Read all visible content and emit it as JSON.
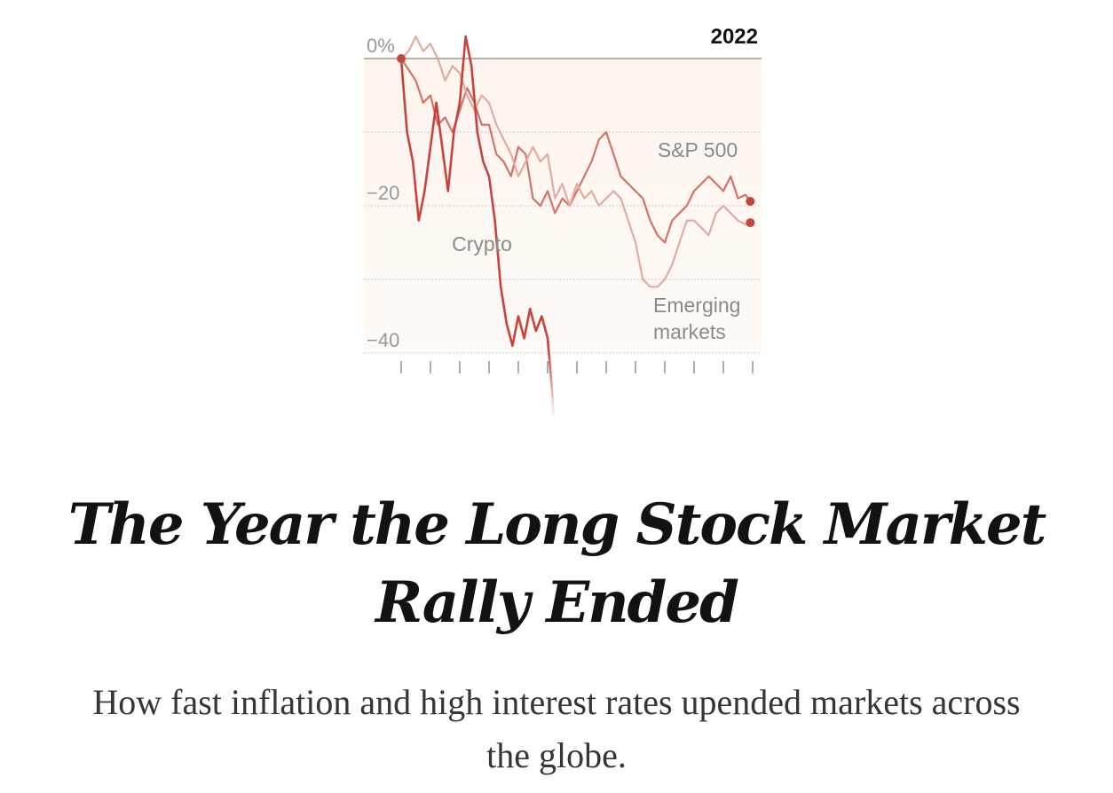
{
  "headline": "The Year the Long Stock Market Rally Ended",
  "dek": "How fast inflation and high interest rates upended markets across the globe.",
  "chart_data": {
    "type": "line",
    "title": "2022",
    "ylim": [
      -40,
      0
    ],
    "yticks": [
      {
        "value": 0,
        "label": "0%"
      },
      {
        "value": -10,
        "label": ""
      },
      {
        "value": -20,
        "label": "−20"
      },
      {
        "value": -30,
        "label": ""
      },
      {
        "value": -40,
        "label": "−40"
      }
    ],
    "grid": true,
    "x_domain": [
      0,
      12
    ],
    "xticks": [
      0,
      1,
      2,
      3,
      4,
      5,
      6,
      7,
      8,
      9,
      10,
      11,
      12
    ],
    "colors": {
      "crypto": "#c8433d",
      "sp500": "#d47368",
      "emerging": "#e5aaa2",
      "grid": "#b7b7b7",
      "zero_line": "#999999",
      "band": "#fdf5ee",
      "tick_label": "#999999",
      "series_label": "#8a8a8a",
      "end_dot": "#c8433d"
    },
    "series": [
      {
        "name": "S&P 500",
        "label_lines": [
          "S&P 500"
        ],
        "x": [
          0,
          0.25,
          0.5,
          0.75,
          1.0,
          1.25,
          1.5,
          1.75,
          2.0,
          2.25,
          2.5,
          2.75,
          3.0,
          3.25,
          3.5,
          3.75,
          4.0,
          4.25,
          4.5,
          4.75,
          5.0,
          5.25,
          5.5,
          5.75,
          6.0,
          6.25,
          6.5,
          6.75,
          7.0,
          7.25,
          7.5,
          7.75,
          8.0,
          8.25,
          8.5,
          8.75,
          9.0,
          9.25,
          9.5,
          9.75,
          10.0,
          10.25,
          10.5,
          10.75,
          11.0,
          11.25,
          11.5,
          11.75,
          11.95
        ],
        "values": [
          0,
          -1.5,
          -3,
          -6,
          -5,
          -9,
          -8,
          -10,
          -7,
          -4,
          -6,
          -9,
          -9,
          -13,
          -14,
          -16,
          -12,
          -13,
          -19,
          -20,
          -18,
          -21,
          -19,
          -20,
          -18,
          -16,
          -14,
          -11,
          -10,
          -13,
          -16,
          -17,
          -18,
          -19,
          -22,
          -24,
          -25,
          -22,
          -21,
          -20,
          -18,
          -17,
          -16,
          -17,
          -18,
          -16,
          -19,
          -18.5,
          -19.4
        ]
      },
      {
        "name": "Emerging markets",
        "label_lines": [
          "Emerging",
          "markets"
        ],
        "x": [
          0,
          0.25,
          0.5,
          0.75,
          1.0,
          1.25,
          1.5,
          1.75,
          2.0,
          2.25,
          2.5,
          2.75,
          3.0,
          3.25,
          3.5,
          3.75,
          4.0,
          4.25,
          4.5,
          4.75,
          5.0,
          5.25,
          5.5,
          5.75,
          6.0,
          6.25,
          6.5,
          6.75,
          7.0,
          7.25,
          7.5,
          7.75,
          8.0,
          8.25,
          8.5,
          8.75,
          9.0,
          9.25,
          9.5,
          9.75,
          10.0,
          10.25,
          10.5,
          10.75,
          11.0,
          11.25,
          11.5,
          11.75,
          11.95
        ],
        "values": [
          0,
          1,
          3,
          1,
          2,
          0,
          -3,
          -1,
          -2,
          -5,
          -7,
          -5,
          -6,
          -9,
          -11,
          -13,
          -16,
          -14,
          -12,
          -14,
          -13,
          -19,
          -17,
          -20,
          -17,
          -19,
          -18,
          -20,
          -19,
          -18,
          -19,
          -22,
          -25,
          -30,
          -31,
          -31,
          -30,
          -28,
          -25,
          -22,
          -22,
          -23,
          -24,
          -21,
          -20,
          -21,
          -22,
          -22.5,
          -22.3
        ]
      },
      {
        "name": "Crypto",
        "label_lines": [
          "Crypto"
        ],
        "x": [
          0,
          0.2,
          0.4,
          0.6,
          0.8,
          1.0,
          1.2,
          1.4,
          1.6,
          1.8,
          2.0,
          2.2,
          2.4,
          2.6,
          2.8,
          3.0,
          3.2,
          3.4,
          3.6,
          3.8,
          4.0,
          4.2,
          4.4,
          4.6,
          4.8,
          5.0,
          5.15,
          5.25
        ],
        "values": [
          0,
          -10,
          -14,
          -22,
          -18,
          -12,
          -6,
          -12,
          -18,
          -10,
          -6,
          3,
          -1,
          -10,
          -14,
          -16,
          -22,
          -31,
          -36,
          -39,
          -35,
          -38,
          -34,
          -37,
          -35,
          -38,
          -45,
          -52
        ]
      }
    ]
  }
}
